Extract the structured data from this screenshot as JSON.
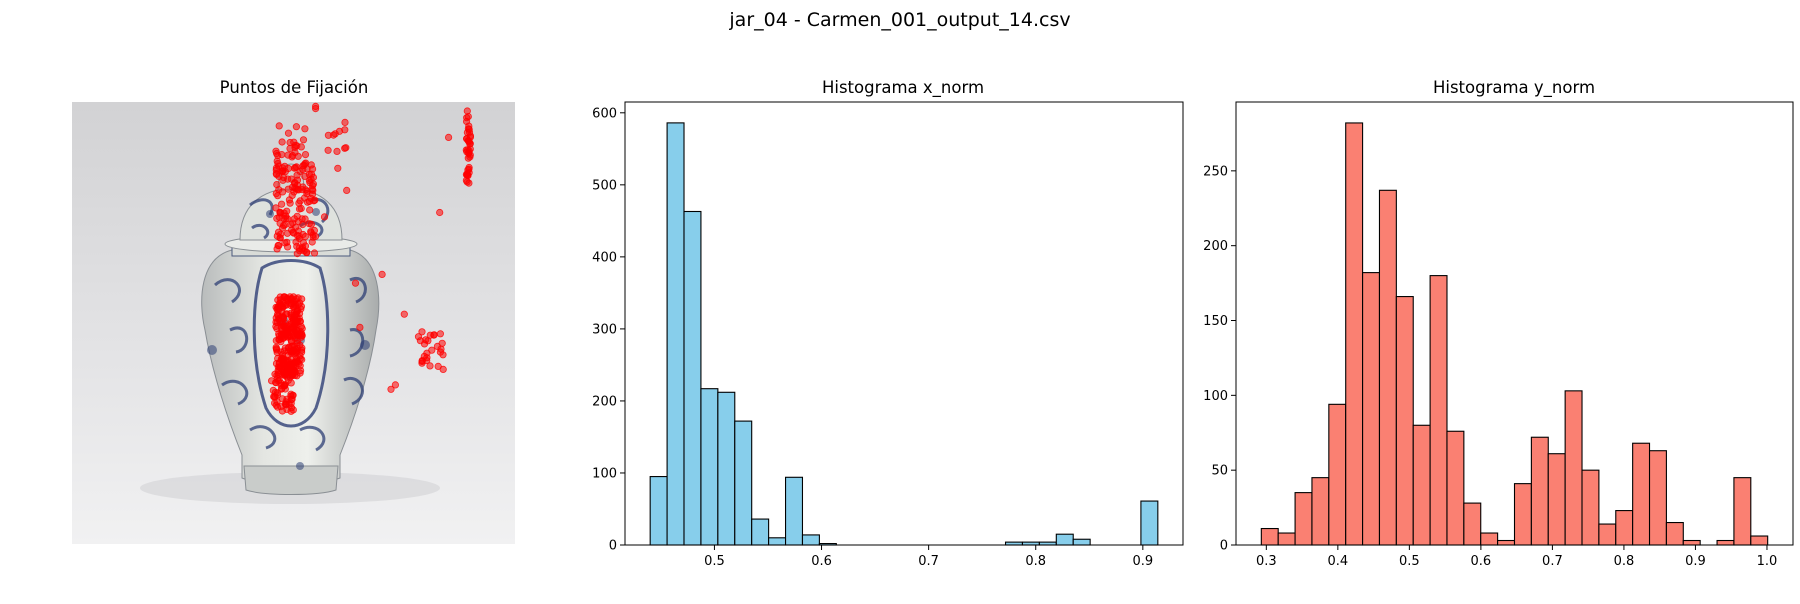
{
  "suptitle": "jar_04 - Carmen_001_output_14.csv",
  "chart_data": [
    {
      "type": "scatter",
      "title": "Puntos de Fijación",
      "axes_visible": false,
      "background": "photo of a blue-and-white porcelain ginger jar",
      "marker_color": "#ff0000",
      "clusters": [
        {
          "x_range": [
            0.46,
            0.52
          ],
          "y_range": [
            0.44,
            0.62
          ],
          "n": 260
        },
        {
          "x_range": [
            0.45,
            0.5
          ],
          "y_range": [
            0.6,
            0.7
          ],
          "n": 60
        },
        {
          "x_range": [
            0.46,
            0.55
          ],
          "y_range": [
            0.14,
            0.35
          ],
          "n": 140
        },
        {
          "x_range": [
            0.46,
            0.53
          ],
          "y_range": [
            0.05,
            0.16
          ],
          "n": 30
        },
        {
          "x_range": [
            0.89,
            0.9
          ],
          "y_range": [
            0.02,
            0.19
          ],
          "n": 40
        },
        {
          "x_range": [
            0.77,
            0.84
          ],
          "y_range": [
            0.52,
            0.61
          ],
          "n": 25
        },
        {
          "x_range": [
            0.57,
            0.62
          ],
          "y_range": [
            0.04,
            0.12
          ],
          "n": 10
        }
      ],
      "points": [
        [
          0.55,
          0.01
        ],
        [
          0.55,
          0.015
        ],
        [
          0.85,
          0.08
        ],
        [
          0.83,
          0.25
        ],
        [
          0.75,
          0.48
        ],
        [
          0.79,
          0.52
        ],
        [
          0.72,
          0.65
        ],
        [
          0.73,
          0.64
        ],
        [
          0.65,
          0.51
        ],
        [
          0.64,
          0.41
        ],
        [
          0.7,
          0.39
        ],
        [
          0.6,
          0.15
        ],
        [
          0.62,
          0.2
        ],
        [
          0.57,
          0.26
        ],
        [
          0.53,
          0.34
        ]
      ]
    },
    {
      "type": "bar",
      "title": "Histograma x_norm",
      "color": "#87ceeb",
      "edgecolor": "#000000",
      "bin_edges": [
        0.44,
        0.4558,
        0.4716,
        0.4874,
        0.5032,
        0.519,
        0.5348,
        0.5506,
        0.5664,
        0.5822,
        0.598,
        0.6138,
        0.6296,
        0.6454,
        0.6612,
        0.677,
        0.6928,
        0.7086,
        0.7244,
        0.7402,
        0.756,
        0.7718,
        0.7876,
        0.8034,
        0.8192,
        0.835,
        0.8508,
        0.8666,
        0.8824,
        0.8982,
        0.914
      ],
      "values": [
        95,
        586,
        463,
        217,
        212,
        172,
        36,
        10,
        94,
        14,
        2,
        0,
        0,
        0,
        0,
        0,
        0,
        0,
        0,
        0,
        0,
        4,
        4,
        4,
        15,
        8,
        0,
        0,
        0,
        61
      ],
      "xlim": [
        0.4165,
        0.9375
      ],
      "ylim": [
        0,
        615
      ],
      "xticks": [
        0.5,
        0.6,
        0.7,
        0.8,
        0.9
      ],
      "xtick_labels": [
        "0.5",
        "0.6",
        "0.7",
        "0.8",
        "0.9"
      ],
      "yticks": [
        0,
        100,
        200,
        300,
        400,
        500,
        600
      ],
      "ytick_labels": [
        "0",
        "100",
        "200",
        "300",
        "400",
        "500",
        "600"
      ]
    },
    {
      "type": "bar",
      "title": "Histograma y_norm",
      "color": "#fa8072",
      "edgecolor": "#000000",
      "bin_edges": [
        0.293,
        0.3166,
        0.3402,
        0.3638,
        0.3874,
        0.411,
        0.4346,
        0.4582,
        0.4818,
        0.5054,
        0.529,
        0.5526,
        0.5762,
        0.5998,
        0.6234,
        0.647,
        0.6706,
        0.6942,
        0.7178,
        0.7414,
        0.765,
        0.7886,
        0.8122,
        0.8358,
        0.8594,
        0.883,
        0.9066,
        0.9302,
        0.9538,
        0.9774,
        1.001
      ],
      "values": [
        11,
        8,
        35,
        45,
        94,
        282,
        182,
        237,
        166,
        80,
        180,
        76,
        28,
        8,
        3,
        41,
        72,
        61,
        103,
        50,
        14,
        23,
        68,
        63,
        15,
        3,
        0,
        3,
        45,
        6
      ],
      "xlim": [
        0.2576,
        1.0364
      ],
      "ylim": [
        0,
        296
      ],
      "xticks": [
        0.3,
        0.4,
        0.5,
        0.6,
        0.7,
        0.8,
        0.9,
        1.0
      ],
      "xtick_labels": [
        "0.3",
        "0.4",
        "0.5",
        "0.6",
        "0.7",
        "0.8",
        "0.9",
        "1.0"
      ],
      "yticks": [
        0,
        50,
        100,
        150,
        200,
        250
      ],
      "ytick_labels": [
        "0",
        "50",
        "100",
        "150",
        "200",
        "250"
      ]
    }
  ]
}
